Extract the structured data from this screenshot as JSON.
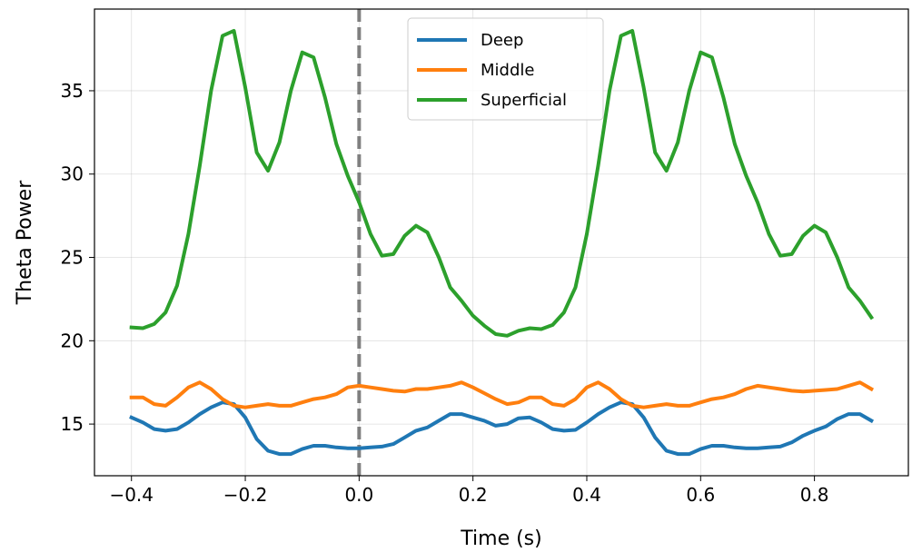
{
  "chart_data": {
    "type": "line",
    "title": "",
    "xlabel": "Time (s)",
    "ylabel": "Theta Power",
    "xlim": [
      -0.465,
      0.965
    ],
    "ylim": [
      11.9,
      39.9
    ],
    "xticks": [
      -0.4,
      -0.2,
      0.0,
      0.2,
      0.4,
      0.6,
      0.8
    ],
    "xtick_labels": [
      "−0.4",
      "−0.2",
      "0.0",
      "0.2",
      "0.4",
      "0.6",
      "0.8"
    ],
    "yticks": [
      15,
      20,
      25,
      30,
      35
    ],
    "ytick_labels": [
      "15",
      "20",
      "25",
      "30",
      "35"
    ],
    "grid": true,
    "legend_position": "top-center",
    "vline": {
      "x": 0.0,
      "style": "dashed",
      "color": "#7f7f7f"
    },
    "x": [
      -0.4,
      -0.38,
      -0.36,
      -0.34,
      -0.32,
      -0.3,
      -0.28,
      -0.26,
      -0.24,
      -0.22,
      -0.2,
      -0.18,
      -0.16,
      -0.14,
      -0.12,
      -0.1,
      -0.08,
      -0.06,
      -0.04,
      -0.02,
      0.0,
      0.02,
      0.04,
      0.06,
      0.08,
      0.1,
      0.12,
      0.14,
      0.16,
      0.18,
      0.2,
      0.22,
      0.24,
      0.26,
      0.28,
      0.3,
      0.32,
      0.34,
      0.36,
      0.38,
      0.4,
      0.42,
      0.44,
      0.46,
      0.48,
      0.5,
      0.52,
      0.54,
      0.56,
      0.58,
      0.6,
      0.62,
      0.64,
      0.66,
      0.68,
      0.7,
      0.72,
      0.74,
      0.76,
      0.78,
      0.8,
      0.82,
      0.84,
      0.86,
      0.88,
      0.9
    ],
    "series": [
      {
        "name": "Deep",
        "color": "#1f77b4",
        "values": [
          15.4,
          15.1,
          14.7,
          14.6,
          14.7,
          15.1,
          15.6,
          16.0,
          16.3,
          16.2,
          15.4,
          14.1,
          13.4,
          13.2,
          13.2,
          13.5,
          13.7,
          13.7,
          13.6,
          13.55,
          13.55,
          13.6,
          13.65,
          13.8,
          14.2,
          14.6,
          14.8,
          15.2,
          15.6,
          15.6,
          15.4,
          15.2,
          14.9,
          15.0,
          15.35,
          15.4,
          15.1,
          14.7,
          14.6,
          14.65,
          15.1,
          15.6,
          16.0,
          16.3,
          16.2,
          15.4,
          14.2,
          13.4,
          13.2,
          13.2,
          13.5,
          13.7,
          13.7,
          13.6,
          13.55,
          13.55,
          13.6,
          13.65,
          13.9,
          14.3,
          14.6,
          14.85,
          15.3,
          15.6,
          15.6,
          15.2
        ]
      },
      {
        "name": "Middle",
        "color": "#ff7f0e",
        "values": [
          16.6,
          16.6,
          16.2,
          16.1,
          16.6,
          17.2,
          17.5,
          17.1,
          16.5,
          16.1,
          16.0,
          16.1,
          16.2,
          16.1,
          16.1,
          16.3,
          16.5,
          16.6,
          16.8,
          17.2,
          17.3,
          17.2,
          17.1,
          17.0,
          16.95,
          17.1,
          17.1,
          17.2,
          17.3,
          17.5,
          17.2,
          16.85,
          16.5,
          16.2,
          16.3,
          16.6,
          16.6,
          16.2,
          16.1,
          16.5,
          17.2,
          17.5,
          17.1,
          16.5,
          16.1,
          16.0,
          16.1,
          16.2,
          16.1,
          16.1,
          16.3,
          16.5,
          16.6,
          16.8,
          17.1,
          17.3,
          17.2,
          17.1,
          17.0,
          16.95,
          17.0,
          17.05,
          17.1,
          17.3,
          17.5,
          17.1
        ]
      },
      {
        "name": "Superficial",
        "color": "#2ca02c",
        "values": [
          20.8,
          20.75,
          21.0,
          21.7,
          23.3,
          26.4,
          30.5,
          35.0,
          38.3,
          38.6,
          35.2,
          31.3,
          30.2,
          31.9,
          35.0,
          37.3,
          37.0,
          34.6,
          31.8,
          29.9,
          28.3,
          26.4,
          25.1,
          25.2,
          26.3,
          26.9,
          26.5,
          25.0,
          23.2,
          22.4,
          21.5,
          20.9,
          20.4,
          20.3,
          20.6,
          20.75,
          20.7,
          20.95,
          21.7,
          23.2,
          26.4,
          30.5,
          35.0,
          38.3,
          38.6,
          35.2,
          31.3,
          30.2,
          31.9,
          35.0,
          37.3,
          37.0,
          34.6,
          31.8,
          29.9,
          28.3,
          26.4,
          25.1,
          25.2,
          26.3,
          26.9,
          26.5,
          25.0,
          23.2,
          22.4,
          21.4
        ]
      }
    ]
  }
}
